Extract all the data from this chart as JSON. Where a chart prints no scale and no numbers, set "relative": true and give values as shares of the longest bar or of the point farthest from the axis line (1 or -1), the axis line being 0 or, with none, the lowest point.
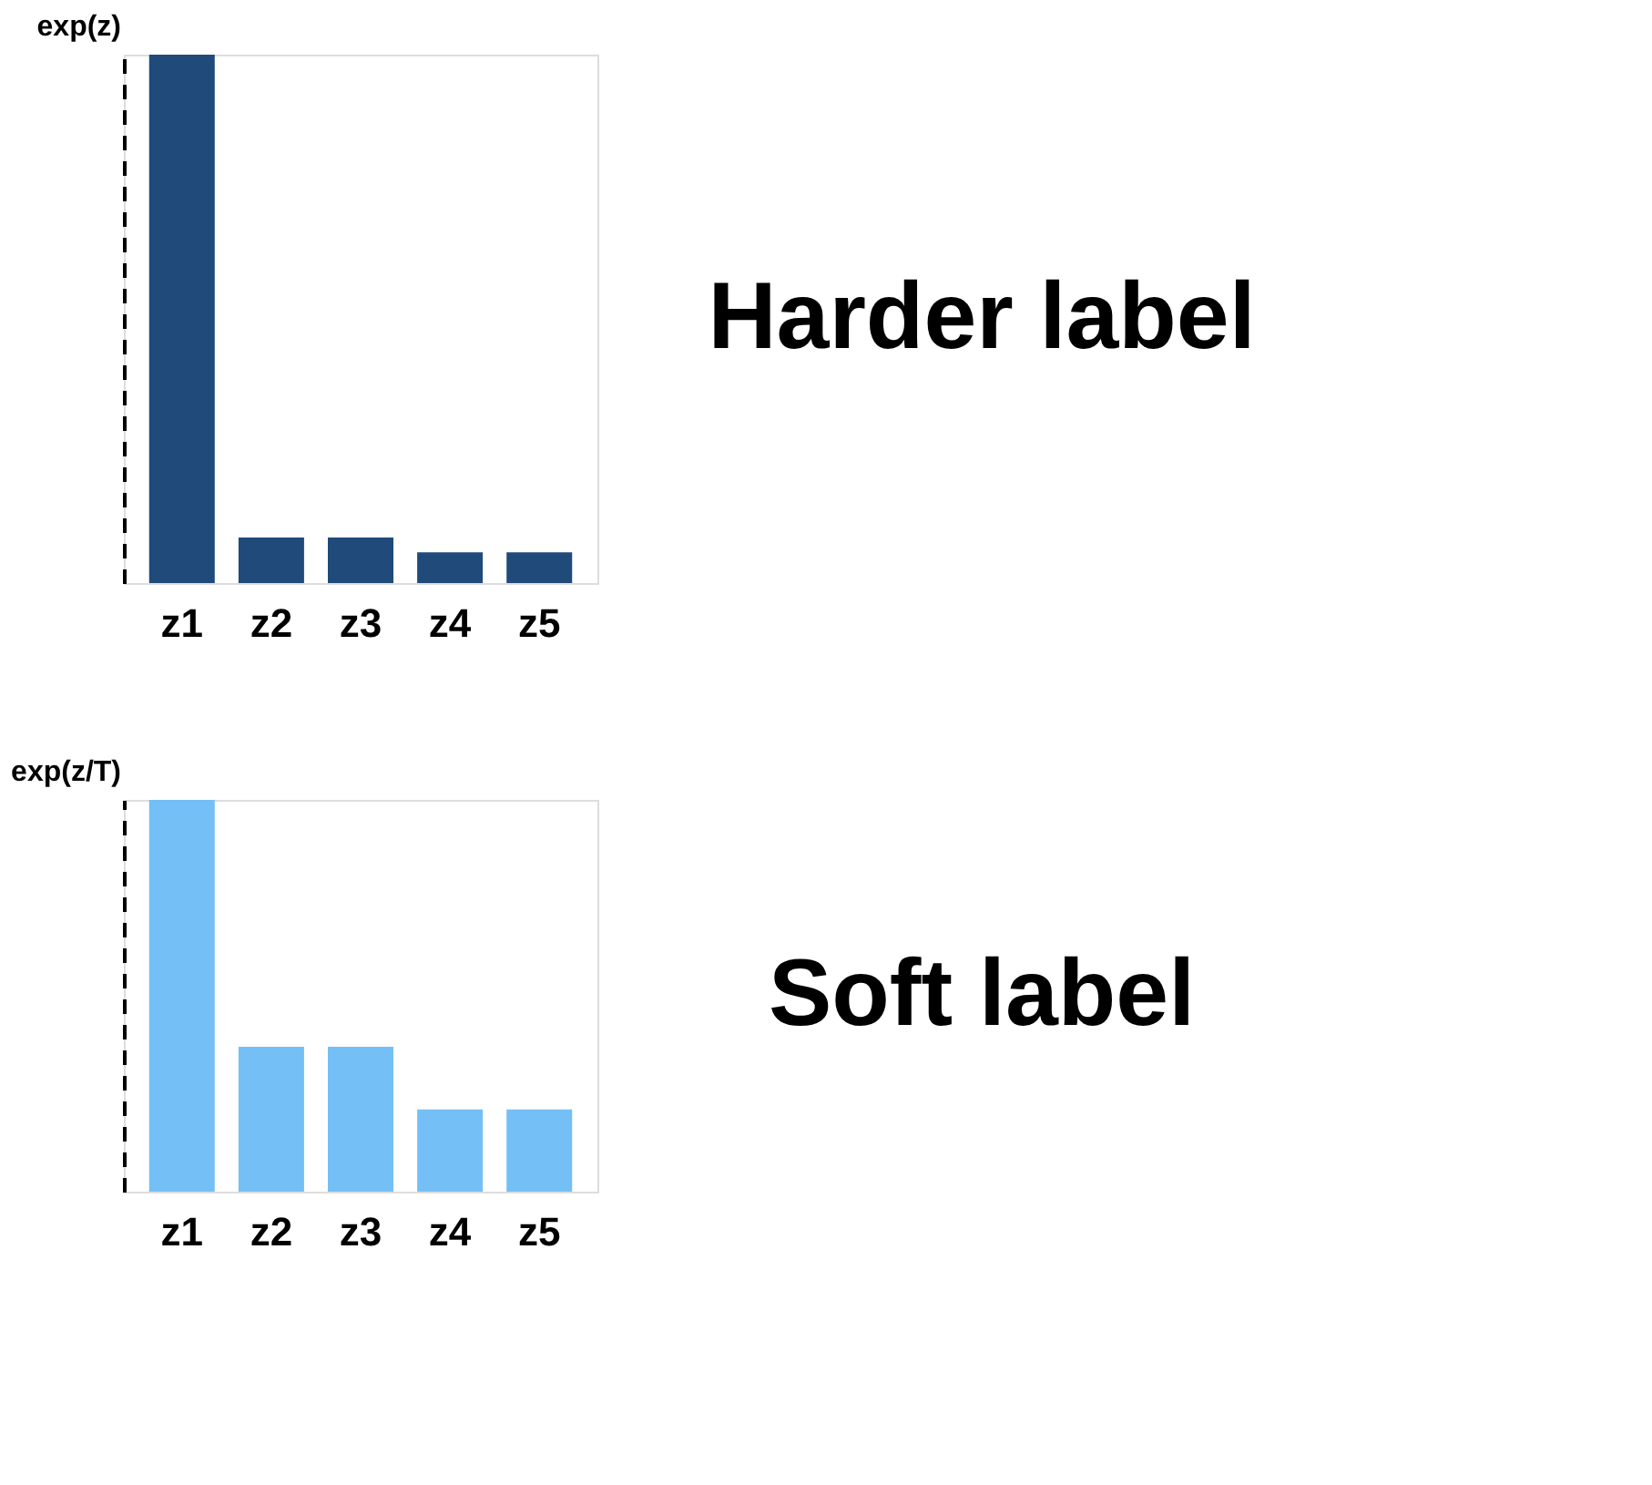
{
  "chart_data": [
    {
      "type": "bar",
      "relative": true,
      "ylabel": "exp(z)",
      "categories": [
        "z1",
        "z2",
        "z3",
        "z4",
        "z5"
      ],
      "values": [
        1,
        0.086,
        0.086,
        0.058,
        0.058
      ],
      "colors": [
        "#1f4a7a",
        "#1f4a7a",
        "#1f4a7a",
        "#1f4a7a",
        "#1f4a7a"
      ],
      "annotations": [
        "Harder label"
      ]
    },
    {
      "type": "bar",
      "relative": true,
      "ylabel": "exp(z/T)",
      "categories": [
        "z1",
        "z2",
        "z3",
        "z4",
        "z5"
      ],
      "values": [
        1,
        0.37,
        0.37,
        0.21,
        0.21
      ],
      "colors": [
        "#74bff5",
        "#74bff5",
        "#74bff5",
        "#74bff5",
        "#74bff5"
      ],
      "annotations": [
        "Soft label"
      ]
    }
  ]
}
